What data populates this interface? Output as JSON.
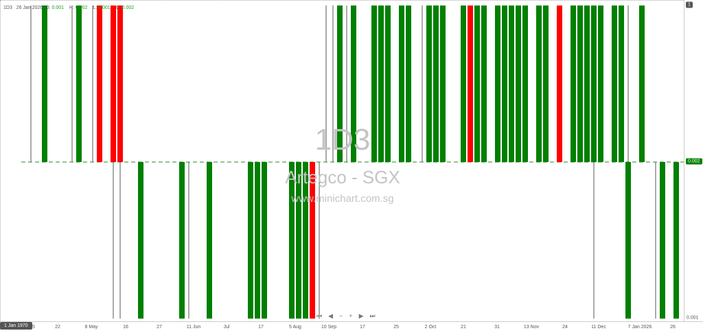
{
  "header": {
    "symbol": "1D3",
    "date": "26 Jan 2026",
    "o_label": "O:",
    "o": "0.001",
    "h_label": "H:",
    "h": "0.002",
    "l_label": "L:",
    "l": "0.001",
    "c_label": "C:",
    "c": "0.002"
  },
  "watermark": {
    "code": "1D3",
    "name": "Artegco - SGX",
    "site": "www.minichart.com.sg"
  },
  "nav": {
    "first": "⏮",
    "prev": "◀",
    "zoom_out": "−",
    "zoom_in": "+",
    "next": "▶",
    "last": "⏭"
  },
  "crosshair_date": "1 Jan 1970",
  "chart_data": {
    "type": "candlestick",
    "colors": {
      "up": "#008000",
      "down": "#ff0000",
      "wick": "#555555"
    },
    "y_axis": {
      "labels": [
        "1",
        "0.002",
        "0.001"
      ],
      "current_value": "0.002"
    },
    "x_ticks": [
      "25",
      "22",
      "8 May",
      "16",
      "27",
      "11 Jun",
      "Jul",
      "17",
      "5 Aug",
      "10 Sep",
      "17",
      "25",
      "2 Oct",
      "21",
      "31",
      "13 Nov",
      "24",
      "11 Dec",
      "7 Jan 2026",
      "26"
    ],
    "bars": [
      {
        "slot": 4,
        "dir": "up",
        "kind": "line"
      },
      {
        "slot": 6,
        "dir": "up",
        "color": "green"
      },
      {
        "slot": 10,
        "dir": "up",
        "kind": "line"
      },
      {
        "slot": 11,
        "dir": "up",
        "color": "green"
      },
      {
        "slot": 13,
        "dir": "up",
        "kind": "line"
      },
      {
        "slot": 14,
        "dir": "up",
        "color": "red"
      },
      {
        "slot": 16,
        "dir": "up",
        "color": "red"
      },
      {
        "slot": 17,
        "dir": "up",
        "color": "red"
      },
      {
        "slot": 16,
        "dir": "down",
        "kind": "line"
      },
      {
        "slot": 17,
        "dir": "down",
        "kind": "line"
      },
      {
        "slot": 20,
        "dir": "down",
        "color": "green"
      },
      {
        "slot": 26,
        "dir": "down",
        "color": "green"
      },
      {
        "slot": 27,
        "dir": "down",
        "kind": "line"
      },
      {
        "slot": 30,
        "dir": "down",
        "color": "green"
      },
      {
        "slot": 36,
        "dir": "down",
        "color": "green"
      },
      {
        "slot": 37,
        "dir": "down",
        "color": "green"
      },
      {
        "slot": 38,
        "dir": "down",
        "color": "green"
      },
      {
        "slot": 42,
        "dir": "down",
        "color": "green"
      },
      {
        "slot": 43,
        "dir": "down",
        "color": "green"
      },
      {
        "slot": 44,
        "dir": "down",
        "color": "green"
      },
      {
        "slot": 45,
        "dir": "down",
        "color": "red"
      },
      {
        "slot": 46,
        "dir": "down",
        "kind": "line"
      },
      {
        "slot": 47,
        "dir": "up",
        "kind": "line"
      },
      {
        "slot": 48,
        "dir": "up",
        "kind": "line"
      },
      {
        "slot": 49,
        "dir": "up",
        "color": "green"
      },
      {
        "slot": 50,
        "dir": "up",
        "kind": "line"
      },
      {
        "slot": 51,
        "dir": "up",
        "color": "green"
      },
      {
        "slot": 54,
        "dir": "up",
        "color": "green"
      },
      {
        "slot": 55,
        "dir": "up",
        "color": "green"
      },
      {
        "slot": 56,
        "dir": "up",
        "color": "green"
      },
      {
        "slot": 58,
        "dir": "up",
        "color": "green"
      },
      {
        "slot": 59,
        "dir": "up",
        "color": "green"
      },
      {
        "slot": 61,
        "dir": "up",
        "kind": "line"
      },
      {
        "slot": 62,
        "dir": "up",
        "color": "green"
      },
      {
        "slot": 63,
        "dir": "up",
        "color": "green"
      },
      {
        "slot": 64,
        "dir": "up",
        "color": "green"
      },
      {
        "slot": 67,
        "dir": "up",
        "color": "green"
      },
      {
        "slot": 68,
        "dir": "up",
        "color": "red"
      },
      {
        "slot": 69,
        "dir": "up",
        "color": "green"
      },
      {
        "slot": 70,
        "dir": "up",
        "color": "green"
      },
      {
        "slot": 72,
        "dir": "up",
        "color": "green"
      },
      {
        "slot": 73,
        "dir": "up",
        "color": "green"
      },
      {
        "slot": 74,
        "dir": "up",
        "color": "green"
      },
      {
        "slot": 75,
        "dir": "up",
        "color": "green"
      },
      {
        "slot": 76,
        "dir": "up",
        "color": "green"
      },
      {
        "slot": 78,
        "dir": "up",
        "color": "green"
      },
      {
        "slot": 79,
        "dir": "up",
        "color": "green"
      },
      {
        "slot": 81,
        "dir": "up",
        "color": "red"
      },
      {
        "slot": 83,
        "dir": "up",
        "color": "green"
      },
      {
        "slot": 84,
        "dir": "up",
        "color": "green"
      },
      {
        "slot": 85,
        "dir": "up",
        "color": "green"
      },
      {
        "slot": 86,
        "dir": "up",
        "color": "green"
      },
      {
        "slot": 86,
        "dir": "down",
        "kind": "line"
      },
      {
        "slot": 87,
        "dir": "up",
        "color": "green"
      },
      {
        "slot": 89,
        "dir": "up",
        "color": "green"
      },
      {
        "slot": 90,
        "dir": "up",
        "color": "green"
      },
      {
        "slot": 91,
        "dir": "down",
        "color": "green"
      },
      {
        "slot": 91,
        "dir": "up",
        "kind": "line"
      },
      {
        "slot": 93,
        "dir": "up",
        "color": "green"
      },
      {
        "slot": 95,
        "dir": "down",
        "kind": "line"
      },
      {
        "slot": 96,
        "dir": "down",
        "color": "green"
      },
      {
        "slot": 98,
        "dir": "down",
        "color": "green"
      }
    ]
  }
}
